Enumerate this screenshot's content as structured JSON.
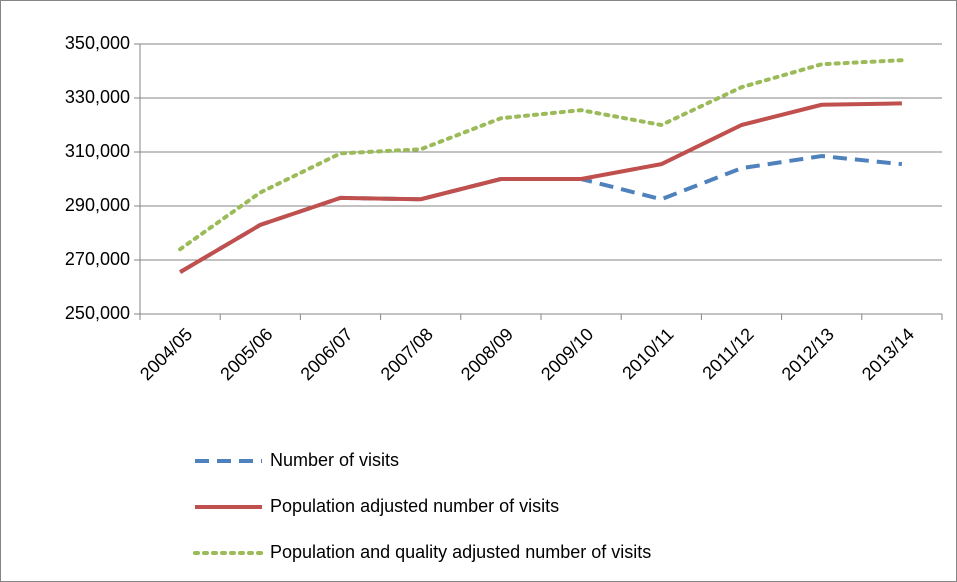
{
  "chart_data": {
    "type": "line",
    "categories": [
      "2004/05",
      "2005/06",
      "2006/07",
      "2007/08",
      "2008/09",
      "2009/10",
      "2010/11",
      "2011/12",
      "2012/13",
      "2013/14"
    ],
    "series": [
      {
        "name": "Number of visits",
        "color": "#4f81bd",
        "dash": "dashed",
        "values": [
          265500,
          283000,
          293000,
          292500,
          300000,
          300000,
          292500,
          304000,
          308500,
          305500
        ]
      },
      {
        "name": "Population adjusted number of visits",
        "color": "#c0504d",
        "dash": "solid",
        "values": [
          265500,
          283000,
          293000,
          292500,
          300000,
          300000,
          305500,
          320000,
          327500,
          328000
        ]
      },
      {
        "name": "Population and quality adjusted number of visits",
        "color": "#9bbb59",
        "dash": "dotted",
        "values": [
          274000,
          295000,
          309500,
          311000,
          322500,
          325500,
          320000,
          334000,
          342500,
          344000
        ]
      }
    ],
    "ylim": [
      250000,
      350000
    ],
    "yticks": [
      {
        "value": 250000,
        "label": "250,000"
      },
      {
        "value": 270000,
        "label": "270,000"
      },
      {
        "value": 290000,
        "label": "290,000"
      },
      {
        "value": 310000,
        "label": "310,000"
      },
      {
        "value": 330000,
        "label": "330,000"
      },
      {
        "value": 350000,
        "label": "350,000"
      }
    ],
    "grid": true,
    "legend": "bottom"
  }
}
